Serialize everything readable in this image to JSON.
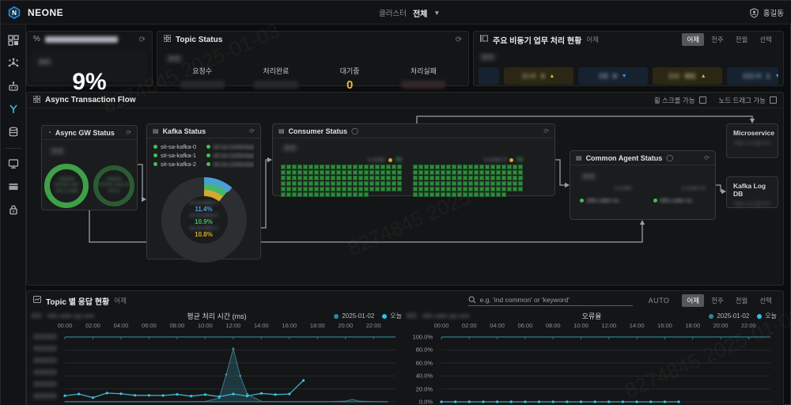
{
  "topbar": {
    "brand": "NEONE",
    "cluster_label": "클러스터",
    "cluster_value": "전체",
    "user_name": "홍길동"
  },
  "sidebar": {
    "icons": [
      "dashboard",
      "network",
      "robot",
      "flow-branch",
      "database",
      "monitor",
      "list-panel",
      "lock"
    ],
    "active": "flow-branch"
  },
  "panels": {
    "gauge": {
      "title_redacted": "",
      "tag": "BID",
      "value": "9%"
    },
    "topic_status": {
      "title": "Topic Status",
      "tag": "천안",
      "columns": [
        {
          "label": "요청수",
          "value": "",
          "redacted": true,
          "tone": "normal"
        },
        {
          "label": "처리완료",
          "value": "",
          "redacted": true,
          "tone": "normal"
        },
        {
          "label": "대기중",
          "value": "0",
          "redacted": false,
          "tone": "pending"
        },
        {
          "label": "처리실패",
          "value": "",
          "redacted": true,
          "tone": "fail"
        }
      ]
    },
    "summary": {
      "title": "주요 비동기 업무 처리 현황",
      "subtitle": "어제",
      "tag": "전안",
      "range_buttons": [
        "어제",
        "전주",
        "전월",
        "선택"
      ],
      "active_range": "어제",
      "chips": [
        {
          "label": "B",
          "value": "1",
          "dir": "down",
          "tone": "blue",
          "cut": "left"
        },
        {
          "label": "EI-R",
          "value": "4",
          "dir": "up",
          "tone": "yellow"
        },
        {
          "label": "EB",
          "value": "0",
          "dir": "down",
          "tone": "blue"
        },
        {
          "label": "EID",
          "value": "931",
          "dir": "up",
          "tone": "yellow"
        },
        {
          "label": "EID-R",
          "value": "1",
          "dir": "down",
          "tone": "blue"
        },
        {
          "label": "ET",
          "value": "8",
          "dir": "down",
          "tone": "blue"
        },
        {
          "label": "EC",
          "value": "2",
          "dir": "down",
          "tone": "blue"
        }
      ]
    }
  },
  "flow": {
    "title": "Async Transaction Flow",
    "toggles": [
      "휠 스크롤 가능",
      "노드 드래그 가능"
    ],
    "gw": {
      "title": "Async GW Status",
      "tag": "전안",
      "rings": [
        {
          "lines": [
            "ORDER",
            "ASYNC-GW",
            "TPS 0.2366"
          ],
          "bright": true
        },
        {
          "lines": [
            "ORDER",
            "ASYNC-GW-CF",
            "TPS 0"
          ],
          "bright": false
        }
      ]
    },
    "kafka": {
      "title": "Kafka Status",
      "brokers": [
        "sit-sa-kafka-0",
        "sit-sa-kafka-1",
        "sit-sa-kafka-2"
      ],
      "zookeepers": [
        "sit-sa-zookeepe..",
        "sit-sa-zookeepe..",
        "sit-sa-zookeepe.."
      ],
      "donut": {
        "segments": [
          {
            "name": "sit-sa-kafka-1",
            "pct": 11.4,
            "color": "#4a9fd4"
          },
          {
            "name": "sit-sa-kafka-0",
            "pct": 10.9,
            "color": "#45b86a"
          },
          {
            "name": "sit-sa-kafka-2",
            "pct": 10.8,
            "color": "#d4aa2e"
          }
        ]
      }
    },
    "consumer": {
      "title": "Consumer Status",
      "tag": "전안",
      "grids": [
        {
          "label": "k-order",
          "count": "59",
          "cols": 22,
          "cells": 126
        },
        {
          "label": "k-order-tl",
          "count": "59",
          "cols": 20,
          "cells": 117
        }
      ]
    },
    "agent": {
      "title": "Common Agent Status",
      "tag": "전안",
      "groups": [
        {
          "header": "k-order",
          "item": "k8s-oder-w.."
        },
        {
          "header": "k-order-th",
          "item": "k8s-oder-w.."
        }
      ]
    },
    "micro": {
      "title": "Microservice",
      "sub": "가상 노드입니다"
    },
    "kafkadb": {
      "title": "Kafka Log DB",
      "sub": "가상 노드입니다"
    }
  },
  "bottom": {
    "title": "Topic 별 응답 현황",
    "subtitle": "어제",
    "search_placeholder": "e.g. 'ind common' or 'keyword'",
    "auto_label": "AUTO",
    "range_buttons": [
      "어제",
      "전주",
      "전월",
      "선택"
    ],
    "active_range": "어제"
  },
  "chart_data": [
    {
      "type": "line",
      "title": "평균 처리 시간 (ms)",
      "sublabel": "BID · k8s-oder-pp-rest",
      "legend": [
        {
          "name": "2025-01-02",
          "color": "#2a8a9e"
        },
        {
          "name": "오늘",
          "color": "#29c5e6"
        }
      ],
      "x_labels": [
        "00:00",
        "02:00",
        "04:00",
        "06:00",
        "08:00",
        "10:00",
        "12:00",
        "14:00",
        "16:00",
        "18:00",
        "20:00",
        "22:00"
      ],
      "x_hours_max": 23,
      "ylim": [
        0,
        1000
      ],
      "y_axis_redacted": true,
      "series": [
        {
          "name": "2025-01-02",
          "kind": "area",
          "x": [
            0,
            1,
            2,
            3,
            4,
            5,
            6,
            7,
            8,
            9,
            10,
            11,
            11.5,
            12,
            12.5,
            13,
            14,
            15,
            16,
            17,
            18,
            19,
            20,
            20.5,
            21,
            22,
            23
          ],
          "values": [
            4,
            4,
            4,
            4,
            4,
            4,
            4,
            4,
            4,
            4,
            6,
            60,
            420,
            820,
            400,
            120,
            8,
            4,
            4,
            4,
            4,
            4,
            12,
            38,
            10,
            4,
            4
          ]
        },
        {
          "name": "오늘",
          "kind": "line",
          "x": [
            0,
            1,
            2,
            3,
            4,
            5,
            6,
            7,
            8,
            9,
            10,
            11,
            12,
            13,
            14,
            15,
            16,
            17
          ],
          "values": [
            95,
            120,
            65,
            135,
            125,
            100,
            100,
            98,
            115,
            88,
            112,
            80,
            120,
            90,
            130,
            112,
            120,
            330
          ]
        }
      ]
    },
    {
      "type": "line",
      "title": "오류율",
      "sublabel": "BID · k8s-oder-pp-rest",
      "legend": [
        {
          "name": "2025-01-02",
          "color": "#2a8a9e"
        },
        {
          "name": "오늘",
          "color": "#29c5e6"
        }
      ],
      "x_labels": [
        "00:00",
        "02:00",
        "04:00",
        "06:00",
        "08:00",
        "10:00",
        "12:00",
        "14:00",
        "16:00",
        "18:00",
        "20:00",
        "22:00"
      ],
      "x_hours_max": 23,
      "ylim": [
        0,
        100
      ],
      "y_ticks": [
        "100.0%",
        "80.0%",
        "60.0%",
        "40.0%",
        "20.0%",
        "0.0%"
      ],
      "series": [
        {
          "name": "오늘",
          "kind": "line",
          "x": [
            0,
            1,
            2,
            3,
            4,
            5,
            6,
            7,
            8,
            9,
            10,
            11,
            12,
            13,
            14,
            15,
            16,
            17
          ],
          "values": [
            0,
            0,
            0,
            0,
            0,
            0,
            0,
            0,
            0,
            0,
            0,
            0,
            0,
            0,
            0,
            0,
            0,
            0
          ]
        }
      ]
    }
  ],
  "watermark": "8274845 2025-01-03"
}
